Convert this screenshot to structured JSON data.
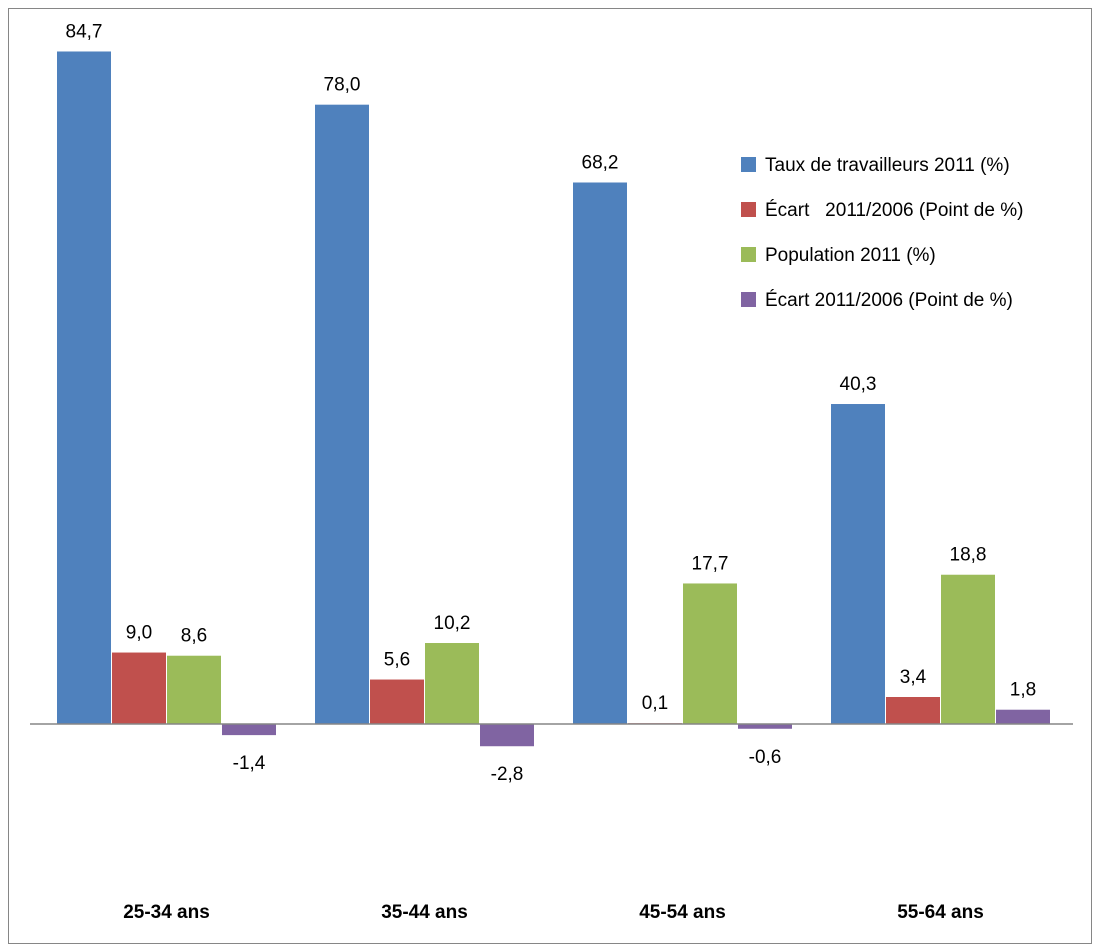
{
  "chart_data": {
    "type": "bar",
    "categories": [
      "25-34 ans",
      "35-44 ans",
      "45-54 ans",
      "55-64 ans"
    ],
    "series": [
      {
        "name": "Taux de travailleurs 2011 (%)",
        "values": [
          84.7,
          78.0,
          68.2,
          40.3
        ],
        "labels": [
          "84,7",
          "78,0",
          "68,2",
          "40,3"
        ],
        "color": "#4F81BD"
      },
      {
        "name": "Écart   2011/2006 (Point de %)",
        "values": [
          9.0,
          5.6,
          0.1,
          3.4
        ],
        "labels": [
          "9,0",
          "5,6",
          "0,1",
          "3,4"
        ],
        "color": "#C0504D"
      },
      {
        "name": "Population 2011 (%)",
        "values": [
          8.6,
          10.2,
          17.7,
          18.8
        ],
        "labels": [
          "8,6",
          "10,2",
          "17,7",
          "18,8"
        ],
        "color": "#9BBB59"
      },
      {
        "name": "Écart 2011/2006 (Point de %)",
        "values": [
          -1.4,
          -2.8,
          -0.6,
          1.8
        ],
        "labels": [
          "-1,4",
          "-2,8",
          "-0,6",
          "1,8"
        ],
        "color": "#8064A2"
      }
    ],
    "legend_position": "right",
    "grid": false,
    "ylim": [
      -6,
      90
    ]
  }
}
